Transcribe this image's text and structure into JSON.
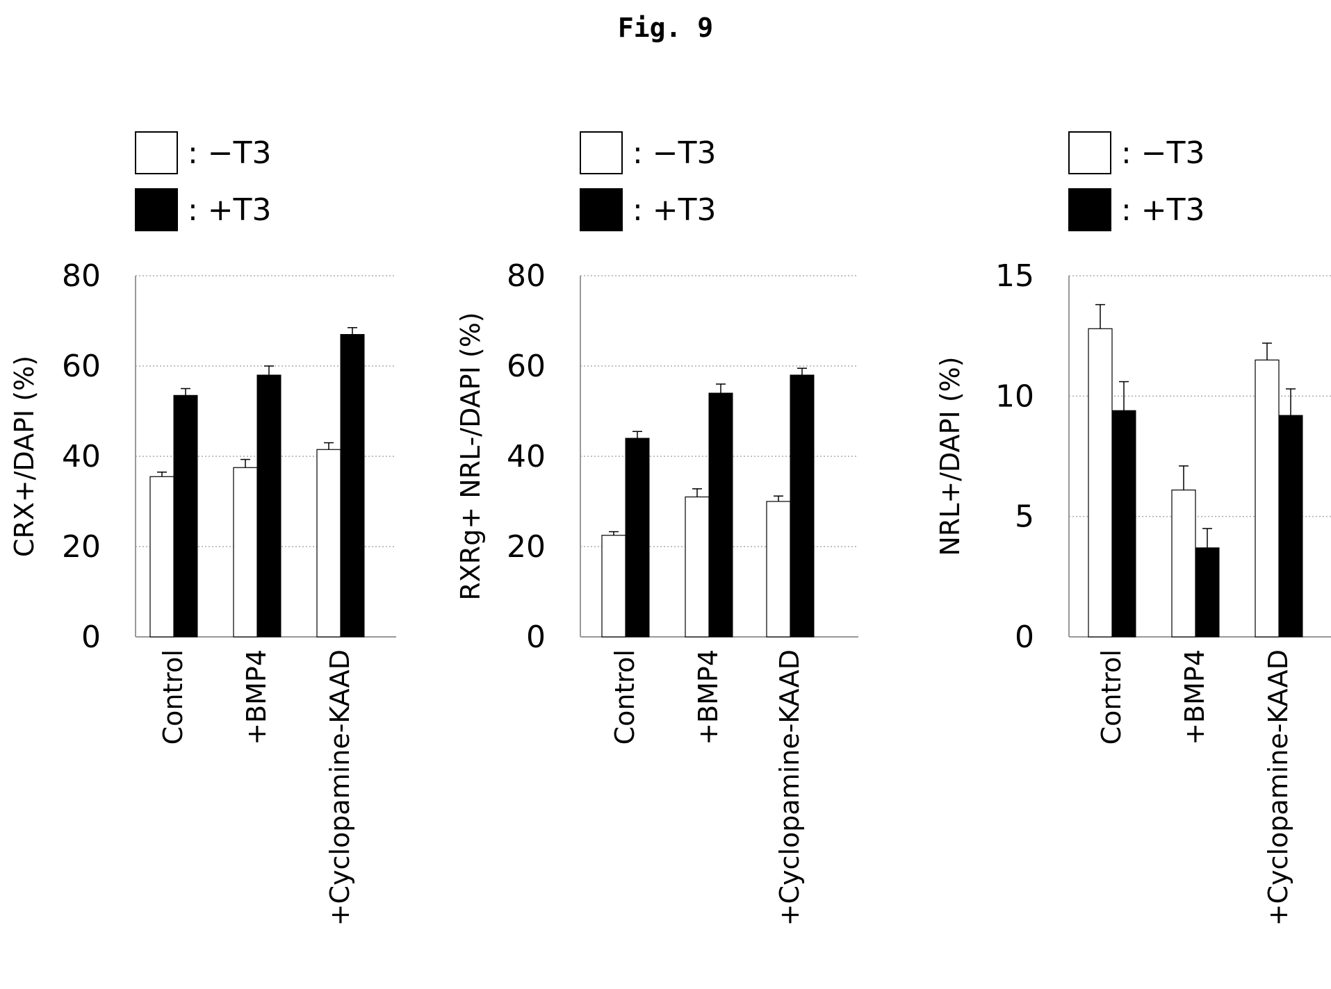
{
  "figure": {
    "title": "Fig. 9"
  },
  "legend": [
    {
      "label": ": −T3",
      "fill": "#ffffff"
    },
    {
      "label": ": +T3",
      "fill": "#000000"
    }
  ],
  "colors": {
    "minus_T3": "#ffffff",
    "plus_T3": "#000000",
    "grid": "#aaaaaa",
    "axis": "#999999"
  },
  "chart_data": [
    {
      "type": "bar",
      "ylabel": "CRX+/DAPI (%)",
      "xlabel": "",
      "categories": [
        "Control",
        "+BMP4",
        "+Cyclopamine-KAAD"
      ],
      "ylim": [
        0,
        80
      ],
      "yticks": [
        0,
        20,
        40,
        60,
        80
      ],
      "grid": true,
      "legend_position": "top-left",
      "series": [
        {
          "name": "−T3",
          "values": [
            35.5,
            37.5,
            41.5
          ],
          "errors": [
            1.0,
            1.8,
            1.5
          ]
        },
        {
          "name": "+T3",
          "values": [
            53.5,
            58,
            67
          ],
          "errors": [
            1.5,
            2.0,
            1.5
          ]
        }
      ]
    },
    {
      "type": "bar",
      "ylabel": "RXRg+ NRL-/DAPI (%)",
      "xlabel": "",
      "categories": [
        "Control",
        "+BMP4",
        "+Cyclopamine-KAAD"
      ],
      "ylim": [
        0,
        80
      ],
      "yticks": [
        0,
        20,
        40,
        60,
        80
      ],
      "grid": true,
      "legend_position": "top-left",
      "series": [
        {
          "name": "−T3",
          "values": [
            22.5,
            31,
            30
          ],
          "errors": [
            0.8,
            1.8,
            1.2
          ]
        },
        {
          "name": "+T3",
          "values": [
            44,
            54,
            58
          ],
          "errors": [
            1.5,
            2.0,
            1.5
          ]
        }
      ]
    },
    {
      "type": "bar",
      "ylabel": "NRL+/DAPI (%)",
      "xlabel": "",
      "categories": [
        "Control",
        "+BMP4",
        "+Cyclopamine-KAAD"
      ],
      "ylim": [
        0,
        15
      ],
      "yticks": [
        0,
        5,
        10,
        15
      ],
      "grid": true,
      "legend_position": "top-left",
      "series": [
        {
          "name": "−T3",
          "values": [
            12.8,
            6.1,
            11.5
          ],
          "errors": [
            1.0,
            1.0,
            0.7
          ]
        },
        {
          "name": "+T3",
          "values": [
            9.4,
            3.7,
            9.2
          ],
          "errors": [
            1.2,
            0.8,
            1.1
          ]
        }
      ]
    }
  ]
}
